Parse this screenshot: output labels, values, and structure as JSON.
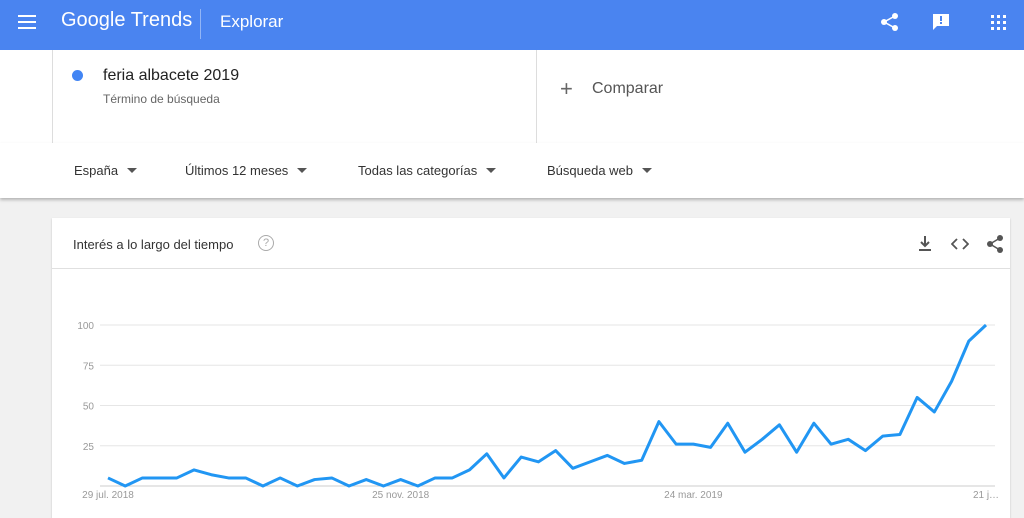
{
  "header": {
    "logo": "Google Trends",
    "section": "Explorar"
  },
  "search": {
    "term": "feria albacete 2019",
    "kind": "Término de búsqueda",
    "compare": "Comparar"
  },
  "filters": [
    "España",
    "Últimos 12 meses",
    "Todas las categorías",
    "Búsqueda web"
  ],
  "chart_data": {
    "type": "line",
    "title": "Interés a lo largo del tiempo",
    "categories": [
      "29 jul. 2018",
      null,
      null,
      null,
      null,
      null,
      null,
      null,
      null,
      null,
      null,
      null,
      null,
      null,
      null,
      null,
      null,
      "25 nov. 2018",
      null,
      null,
      null,
      null,
      null,
      null,
      null,
      null,
      null,
      null,
      null,
      null,
      null,
      null,
      null,
      null,
      "24 mar. 2019",
      null,
      null,
      null,
      null,
      null,
      null,
      null,
      null,
      null,
      null,
      null,
      null,
      null,
      null,
      null,
      null,
      "21 j…"
    ],
    "series": [
      {
        "name": "feria albacete 2019",
        "color": "#2196f3",
        "values": [
          5,
          0,
          5,
          5,
          5,
          10,
          7,
          5,
          5,
          0,
          5,
          0,
          4,
          5,
          0,
          4,
          0,
          4,
          0,
          5,
          5,
          10,
          20,
          5,
          18,
          15,
          22,
          11,
          15,
          19,
          14,
          16,
          40,
          26,
          26,
          24,
          39,
          21,
          29,
          38,
          21,
          39,
          26,
          29,
          22,
          31,
          32,
          55,
          46,
          65,
          90,
          100
        ]
      }
    ],
    "ylim": [
      0,
      100
    ],
    "yticks": [
      25,
      50,
      75,
      100
    ],
    "grid": true
  }
}
